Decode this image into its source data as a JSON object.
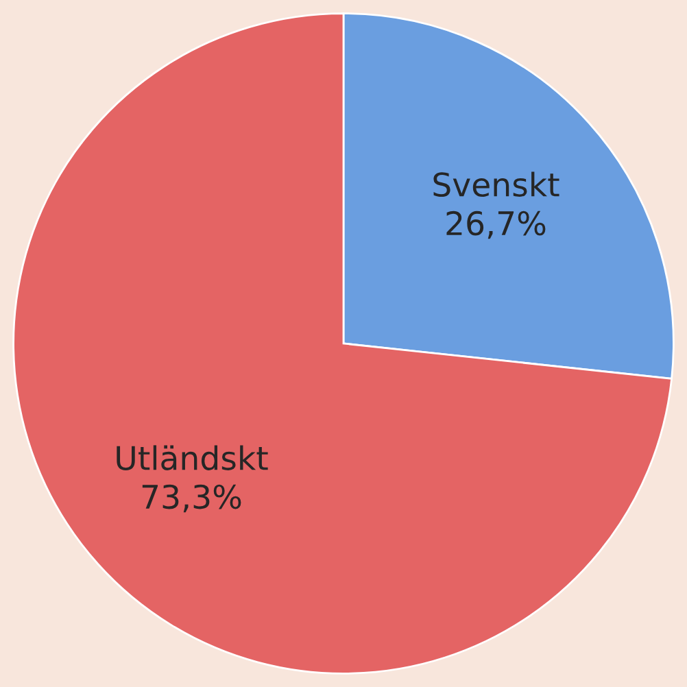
{
  "chart_data": {
    "type": "pie",
    "categories": [
      "Svenskt",
      "Utländskt"
    ],
    "values": [
      26.7,
      73.3
    ],
    "colors": [
      "#6a9ee0",
      "#e46464"
    ],
    "value_labels": [
      "26,7%",
      "73,3%"
    ]
  }
}
